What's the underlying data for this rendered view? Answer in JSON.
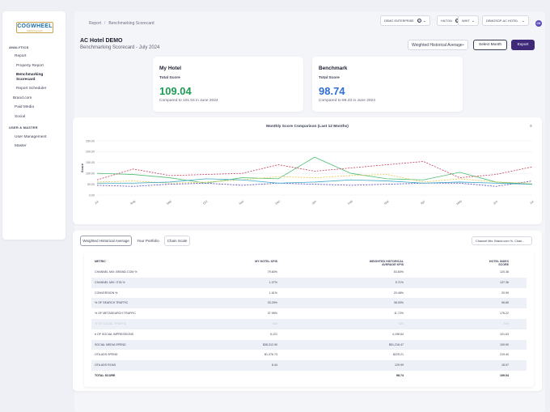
{
  "logo": {
    "name": "COGWHEEL",
    "tagline": "Marketing Hub"
  },
  "sidebar": {
    "sections": [
      {
        "title": "ANALYTICS"
      },
      {
        "title": "USER & MASTER"
      }
    ],
    "items": [
      {
        "label": "Report"
      },
      {
        "label": "Property Report"
      },
      {
        "label": "Benchmarking Scorecard"
      },
      {
        "label": "Report Scheduler"
      },
      {
        "label": "Brand.com"
      },
      {
        "label": "Paid Media"
      },
      {
        "label": "Social"
      },
      {
        "label": "User Management"
      },
      {
        "label": "Master"
      }
    ]
  },
  "breadcrumb": {
    "root": "Report",
    "separator": "/",
    "current": "Benchmarking Scorecard"
  },
  "filters": [
    {
      "label": "DEMO ENTERPRISE"
    },
    {
      "label": "HILTON"
    },
    {
      "label": "WHIT"
    },
    {
      "label": "DEMOSOP-AC HOTEL"
    }
  ],
  "user": {
    "initials": "CK"
  },
  "header": {
    "title": "AC Hotel DEMO",
    "subtitle": "Benchmarking Scorecard - July 2024",
    "weighted_select": "Weighted Historical Average",
    "select_month_label": "Select Month",
    "export_label": "Export"
  },
  "cards": {
    "my_hotel": {
      "title": "My Hotel",
      "label": "Total Score",
      "value": "109.04",
      "compare": "Compared to 101.04 in June 2024",
      "color": "#1f9d55"
    },
    "benchmark": {
      "title": "Benchmark",
      "label": "Total Score",
      "value": "98.74",
      "compare": "Compared to 88.23 in June 2024",
      "color": "#2f6fd6"
    }
  },
  "chart_data": {
    "type": "line",
    "title": "Monthly Score Comparison (Last 12 Months)",
    "ylabel": "Score",
    "xlabel": "",
    "categories": [
      "Jul",
      "Aug",
      "Sep",
      "Oct",
      "Nov",
      "Dec",
      "Jan",
      "Feb",
      "Mar",
      "Apr",
      "May",
      "Jun",
      "Jul"
    ],
    "ylim": [
      0,
      250
    ],
    "yticks": [
      "0.00",
      "50.00",
      "100.00",
      "150.00",
      "200.00",
      "250.00"
    ],
    "grid": true,
    "series": [
      {
        "color": "#4fbf73",
        "dash": "",
        "values": [
          100,
          95,
          80,
          55,
          80,
          75,
          175,
          100,
          75,
          70,
          105,
          60,
          50
        ]
      },
      {
        "color": "#c1405a",
        "dash": "2,1.5",
        "values": [
          70,
          120,
          90,
          95,
          100,
          140,
          110,
          125,
          140,
          155,
          80,
          95,
          130
        ]
      },
      {
        "color": "#5b4bb7",
        "dash": "2,1.5",
        "values": [
          45,
          40,
          50,
          55,
          45,
          55,
          50,
          45,
          50,
          55,
          55,
          40,
          65
        ]
      },
      {
        "color": "#e2c84a",
        "dash": "2,1.5",
        "values": [
          60,
          65,
          55,
          60,
          70,
          85,
          80,
          90,
          95,
          60,
          75,
          60,
          55
        ]
      },
      {
        "color": "#3aa7c7",
        "dash": "",
        "values": [
          55,
          55,
          60,
          75,
          70,
          55,
          60,
          70,
          65,
          55,
          60,
          55,
          50
        ]
      }
    ]
  },
  "table": {
    "tabs": [
      {
        "label": "Weighted Historical Average"
      },
      {
        "label": "Your Portfolio"
      },
      {
        "label": "Chain Scale"
      }
    ],
    "channel_select": "Channel Mix: Brand.com %, Chan...",
    "headers": [
      "METRIC",
      "MY HOTEL KPIS",
      "WEIGHTED HISTORICAL AVERAGE KPIS",
      "HOTEL INDEX SCORE"
    ],
    "rows": [
      {
        "metric": "CHANNEL MIX: BRAND.COM %",
        "my": "79.60%",
        "wha": "53.60%",
        "score": "120.38"
      },
      {
        "metric": "CHANNEL MIX: OTA %",
        "my": "1.07%",
        "wha": "5.71%",
        "score": "137.36"
      },
      {
        "metric": "CONVERSION %",
        "my": "1.61%",
        "wha": "20.48%",
        "score": "20.99"
      },
      {
        "metric": "% OF SEARCH TRAFFIC",
        "my": "33.29%",
        "wha": "38.00%",
        "score": "98.65"
      },
      {
        "metric": "% OF METASEARCH TRAFFIC",
        "my": "37.95%",
        "wha": "11.72%",
        "score": "176.22"
      },
      {
        "metric": "% OF SOCIAL TRAFFIC",
        "my": "N/A",
        "wha": "N/A",
        "score": "N/A"
      },
      {
        "metric": "# OF SOCIAL IMPRESSIONS",
        "my": "5,121",
        "wha": "4,198.64",
        "score": "101.63"
      },
      {
        "metric": "SOCIAL MEDIA SPEND",
        "my": "$38,312.90",
        "wha": "$51,218.47",
        "score": "109.90"
      },
      {
        "metric": "OTA ADS SPEND",
        "my": "$1,376.73",
        "wha": "$225.21",
        "score": "219.40"
      },
      {
        "metric": "OTA ADS ROAS",
        "my": "8.44",
        "wha": "129.99",
        "score": "18.07"
      },
      {
        "metric": "TOTAL SCORE",
        "my": "",
        "wha": "98.74",
        "score": "109.04"
      }
    ]
  }
}
